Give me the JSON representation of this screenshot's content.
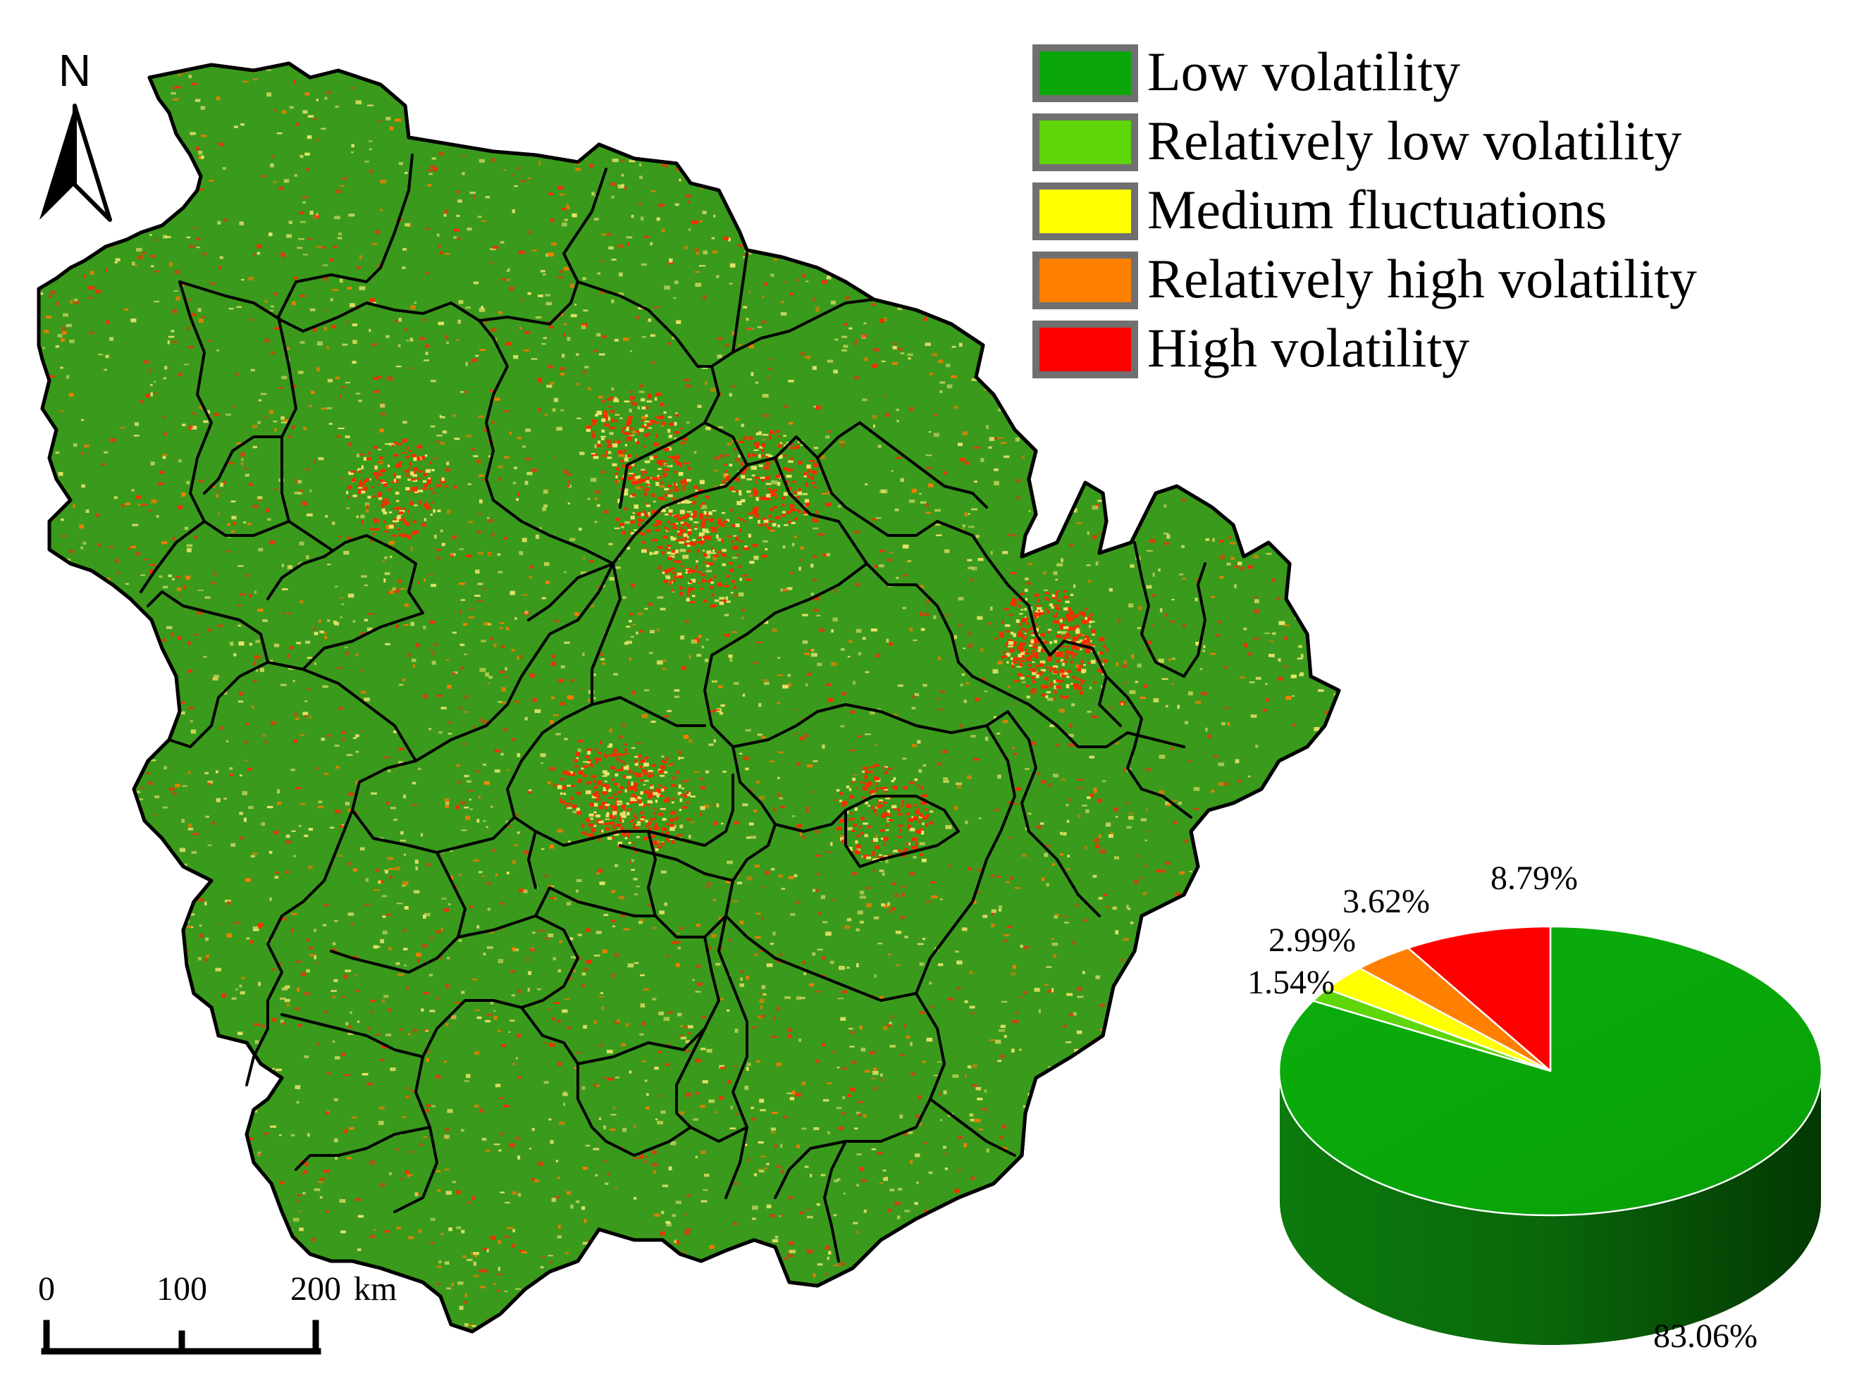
{
  "north_arrow": {
    "label": "N"
  },
  "legend": {
    "items": [
      {
        "label": "Low volatility",
        "color": "#0aa60a"
      },
      {
        "label": "Relatively low volatility",
        "color": "#5fd60a"
      },
      {
        "label": "Medium fluctuations",
        "color": "#ffff00"
      },
      {
        "label": "Relatively high volatility",
        "color": "#ff8000"
      },
      {
        "label": "High volatility",
        "color": "#ff0000"
      }
    ]
  },
  "map": {
    "base_color": "#3a9a1c",
    "boundary_color": "#000000",
    "speckle_colors": [
      "#ff2a00",
      "#e9e36a",
      "#ff7a00"
    ]
  },
  "scale_bar": {
    "ticks": [
      "0",
      "100",
      "200"
    ],
    "unit": "km"
  },
  "chart_data": {
    "type": "pie",
    "style": "3d",
    "categories": [
      "Low volatility",
      "Relatively low volatility",
      "Medium fluctuations",
      "Relatively high volatility",
      "High volatility"
    ],
    "values": [
      83.06,
      1.54,
      2.99,
      3.62,
      8.79
    ],
    "labels": [
      "83.06%",
      "1.54%",
      "2.99%",
      "3.62%",
      "8.79%"
    ],
    "colors": [
      "#0aa60a",
      "#5fd60a",
      "#ffff00",
      "#ff8000",
      "#ff0000"
    ]
  }
}
